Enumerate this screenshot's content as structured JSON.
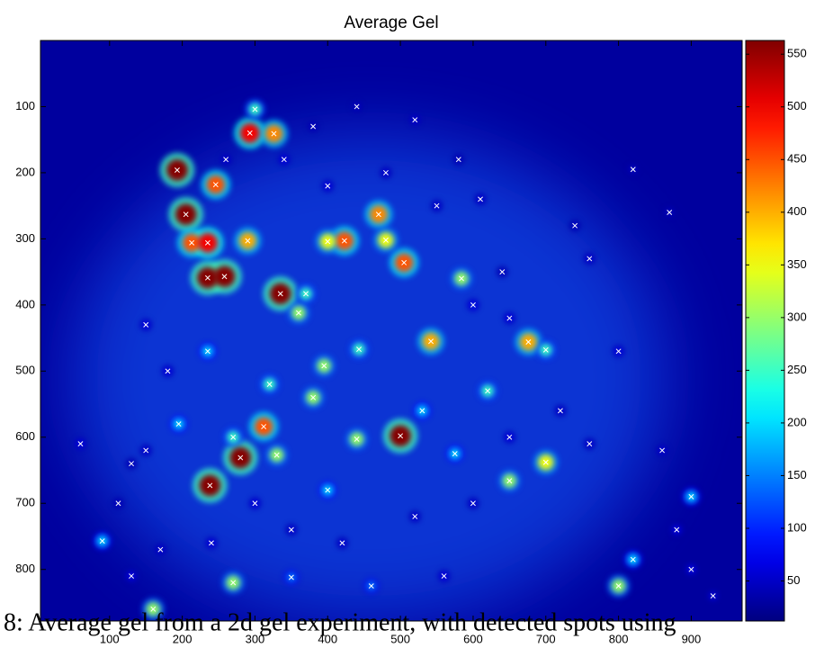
{
  "chart_data": {
    "type": "heatmap",
    "title": "Average Gel",
    "caption": "8: Average gel from a 2d gel experiment, with detected spots using",
    "colormap": "jet",
    "marker_color": "#ffffff",
    "y_reversed": true,
    "xlim": [
      5,
      970
    ],
    "ylim": [
      0,
      878
    ],
    "xticks": [
      100,
      200,
      300,
      400,
      500,
      600,
      700,
      800,
      900
    ],
    "yticks": [
      100,
      200,
      300,
      400,
      500,
      600,
      700,
      800
    ],
    "colorbar": {
      "clim": [
        12,
        563
      ],
      "ticks": [
        50,
        100,
        150,
        200,
        250,
        300,
        350,
        400,
        450,
        500,
        550
      ]
    },
    "spots": {
      "x": [
        193,
        205,
        235,
        258,
        335,
        213,
        293,
        326,
        246,
        235,
        500,
        280,
        238,
        312,
        423,
        470,
        505,
        542,
        676,
        700,
        650,
        480,
        400,
        290,
        360,
        395,
        443,
        380,
        160,
        270,
        800,
        90,
        900,
        620,
        584,
        700,
        370,
        440,
        320,
        270,
        330,
        195,
        400,
        235,
        530,
        820,
        460,
        350,
        575,
        300,
        150,
        180,
        130,
        112,
        60,
        170,
        240,
        300,
        350,
        420,
        520,
        560,
        600,
        650,
        720,
        760,
        800,
        860,
        880,
        740,
        640,
        610,
        580,
        520,
        440,
        380,
        340,
        260,
        400,
        480,
        550,
        600,
        650,
        150,
        760,
        820,
        870,
        900,
        930,
        130
      ],
      "y": [
        196,
        263,
        359,
        357,
        383,
        306,
        140,
        141,
        218,
        306,
        598,
        631,
        673,
        584,
        303,
        263,
        336,
        455,
        456,
        638,
        666,
        302,
        304,
        303,
        412,
        492,
        467,
        540,
        860,
        820,
        825,
        757,
        690,
        530,
        360,
        468,
        383,
        603,
        520,
        600,
        627,
        580,
        680,
        470,
        560,
        785,
        825,
        812,
        625,
        104,
        430,
        500,
        640,
        700,
        610,
        770,
        760,
        700,
        740,
        760,
        720,
        810,
        700,
        600,
        560,
        610,
        470,
        620,
        740,
        280,
        350,
        240,
        180,
        120,
        100,
        130,
        180,
        180,
        220,
        200,
        250,
        400,
        420,
        620,
        330,
        195,
        260,
        800,
        840,
        810
      ],
      "values": [
        560,
        560,
        560,
        560,
        560,
        450,
        500,
        420,
        450,
        500,
        560,
        560,
        560,
        450,
        450,
        420,
        450,
        400,
        400,
        350,
        300,
        350,
        350,
        400,
        300,
        300,
        250,
        300,
        300,
        300,
        300,
        200,
        200,
        250,
        300,
        250,
        250,
        300,
        250,
        250,
        300,
        200,
        200,
        200,
        200,
        200,
        150,
        150,
        200,
        250,
        80,
        80,
        60,
        60,
        80,
        70,
        80,
        80,
        70,
        70,
        70,
        80,
        70,
        80,
        70,
        70,
        80,
        70,
        80,
        60,
        60,
        70,
        60,
        70,
        60,
        60,
        80,
        70,
        80,
        70,
        70,
        90,
        80,
        70,
        70,
        60,
        60,
        80,
        70,
        80
      ]
    }
  }
}
